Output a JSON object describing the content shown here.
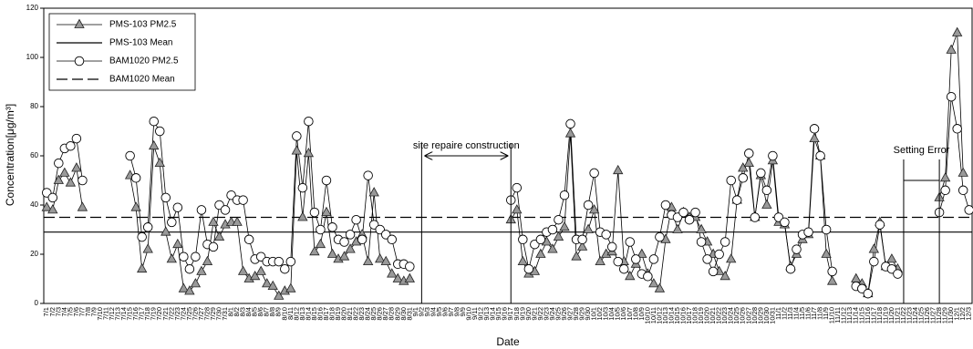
{
  "chart_data": {
    "type": "line",
    "ylabel": "Concentration[μg/m³]",
    "xlabel": "Date",
    "ylim": [
      0,
      120
    ],
    "yticks": [
      0,
      20,
      40,
      60,
      80,
      100,
      120
    ],
    "legend": "upper left",
    "categories": [
      "7/1",
      "7/2",
      "7/3",
      "7/4",
      "7/5",
      "7/6",
      "7/7",
      "7/8",
      "7/9",
      "7/10",
      "7/11",
      "7/12",
      "7/13",
      "7/14",
      "7/15",
      "7/16",
      "7/17",
      "7/18",
      "7/19",
      "7/20",
      "7/21",
      "7/22",
      "7/23",
      "7/24",
      "7/25",
      "7/26",
      "7/27",
      "7/28",
      "7/29",
      "7/30",
      "7/31",
      "8/1",
      "8/2",
      "8/3",
      "8/4",
      "8/5",
      "8/6",
      "8/7",
      "8/8",
      "8/9",
      "8/10",
      "8/11",
      "8/12",
      "8/13",
      "8/14",
      "8/15",
      "8/16",
      "8/17",
      "8/18",
      "8/19",
      "8/20",
      "8/21",
      "8/22",
      "8/23",
      "8/24",
      "8/25",
      "8/26",
      "8/27",
      "8/28",
      "8/29",
      "8/30",
      "8/31",
      "9/1",
      "9/2",
      "9/3",
      "9/4",
      "9/5",
      "9/6",
      "9/7",
      "9/8",
      "9/9",
      "9/10",
      "9/11",
      "9/12",
      "9/13",
      "9/14",
      "9/15",
      "9/16",
      "9/17",
      "9/18",
      "9/19",
      "9/20",
      "9/21",
      "9/22",
      "9/23",
      "9/24",
      "9/25",
      "9/26",
      "9/27",
      "9/28",
      "9/29",
      "9/30",
      "10/1",
      "10/2",
      "10/3",
      "10/4",
      "10/5",
      "10/6",
      "10/7",
      "10/8",
      "10/9",
      "10/10",
      "10/11",
      "10/12",
      "10/13",
      "10/14",
      "10/15",
      "10/16",
      "10/17",
      "10/18",
      "10/19",
      "10/20",
      "10/21",
      "10/22",
      "10/23",
      "10/24",
      "10/25",
      "10/26",
      "10/27",
      "10/28",
      "10/29",
      "10/30",
      "10/31",
      "11/1",
      "11/2",
      "11/3",
      "11/4",
      "11/5",
      "11/6",
      "11/7",
      "11/8",
      "11/9",
      "11/10",
      "11/11",
      "11/12",
      "11/13",
      "11/14",
      "11/15",
      "11/16",
      "11/17",
      "11/18",
      "11/19",
      "11/20",
      "11/21",
      "11/22",
      "11/23",
      "11/24",
      "11/25",
      "11/26",
      "11/27",
      "11/28",
      "11/29",
      "11/30",
      "12/1",
      "12/2",
      "12/3"
    ],
    "series": [
      {
        "name": "PMS-103 PM2.5",
        "marker": "triangle",
        "color": "#999999",
        "values": [
          39,
          38,
          50,
          53,
          49,
          55,
          39,
          null,
          null,
          null,
          null,
          null,
          null,
          null,
          52,
          39,
          14,
          22,
          64,
          57,
          29,
          18,
          24,
          6,
          5,
          8,
          13,
          17,
          33,
          27,
          32,
          33,
          33,
          13,
          10,
          11,
          13,
          8,
          7,
          3,
          5,
          6,
          62,
          35,
          61,
          21,
          24,
          37,
          20,
          18,
          19,
          22,
          25,
          28,
          17,
          45,
          18,
          17,
          12,
          10,
          9,
          10,
          null,
          null,
          null,
          null,
          null,
          null,
          null,
          null,
          null,
          null,
          null,
          null,
          null,
          null,
          null,
          null,
          34,
          38,
          17,
          12,
          13,
          20,
          25,
          22,
          27,
          31,
          69,
          19,
          23,
          30,
          38,
          17,
          20,
          21,
          54,
          17,
          11,
          16,
          20,
          12,
          8,
          6,
          26,
          39,
          30,
          37,
          35,
          35,
          30,
          25,
          20,
          13,
          11,
          18,
          42,
          55,
          57,
          35,
          52,
          40,
          58,
          33,
          32,
          15,
          20,
          26,
          28,
          67,
          60,
          20,
          9,
          null,
          null,
          null,
          10,
          8,
          4,
          22,
          33,
          15,
          18,
          14,
          null,
          null,
          null,
          null,
          null,
          null,
          43,
          51,
          103,
          110,
          53,
          null
        ]
      },
      {
        "name": "PMS-103 Mean",
        "marker": "solid",
        "color": "#000000",
        "value": 29
      },
      {
        "name": "BAM1020 PM2.5",
        "marker": "circle",
        "color": "#ffffff",
        "values": [
          45,
          43,
          57,
          63,
          64,
          67,
          50,
          null,
          null,
          null,
          null,
          null,
          null,
          null,
          60,
          51,
          27,
          31,
          74,
          70,
          43,
          33,
          39,
          19,
          14,
          19,
          38,
          24,
          23,
          40,
          38,
          44,
          42,
          42,
          26,
          18,
          19,
          17,
          17,
          17,
          14,
          17,
          68,
          47,
          74,
          37,
          30,
          50,
          31,
          26,
          25,
          28,
          34,
          26,
          52,
          32,
          30,
          28,
          26,
          16,
          16,
          15,
          null,
          null,
          null,
          null,
          null,
          null,
          null,
          null,
          null,
          null,
          null,
          null,
          null,
          null,
          null,
          null,
          42,
          47,
          26,
          14,
          24,
          26,
          29,
          30,
          34,
          44,
          73,
          26,
          26,
          40,
          53,
          29,
          28,
          23,
          17,
          14,
          25,
          18,
          12,
          11,
          18,
          27,
          40,
          36,
          35,
          37,
          34,
          37,
          25,
          18,
          13,
          20,
          25,
          50,
          42,
          51,
          61,
          35,
          53,
          46,
          60,
          35,
          33,
          14,
          22,
          28,
          29,
          71,
          60,
          30,
          13,
          null,
          null,
          null,
          7,
          6,
          4,
          17,
          32,
          15,
          14,
          12,
          null,
          null,
          null,
          null,
          null,
          null,
          37,
          46,
          84,
          71,
          46,
          38
        ]
      },
      {
        "name": "BAM1020 Mean",
        "marker": "dashed",
        "color": "#000000",
        "value": 35
      }
    ],
    "annotations": [
      {
        "text": "site repaire construction",
        "start": "9/2",
        "end": "9/17",
        "style": "arrow"
      },
      {
        "text": "Setting Error",
        "start": "11/22",
        "end": "11/28",
        "style": "bracket",
        "level": 50
      }
    ]
  }
}
